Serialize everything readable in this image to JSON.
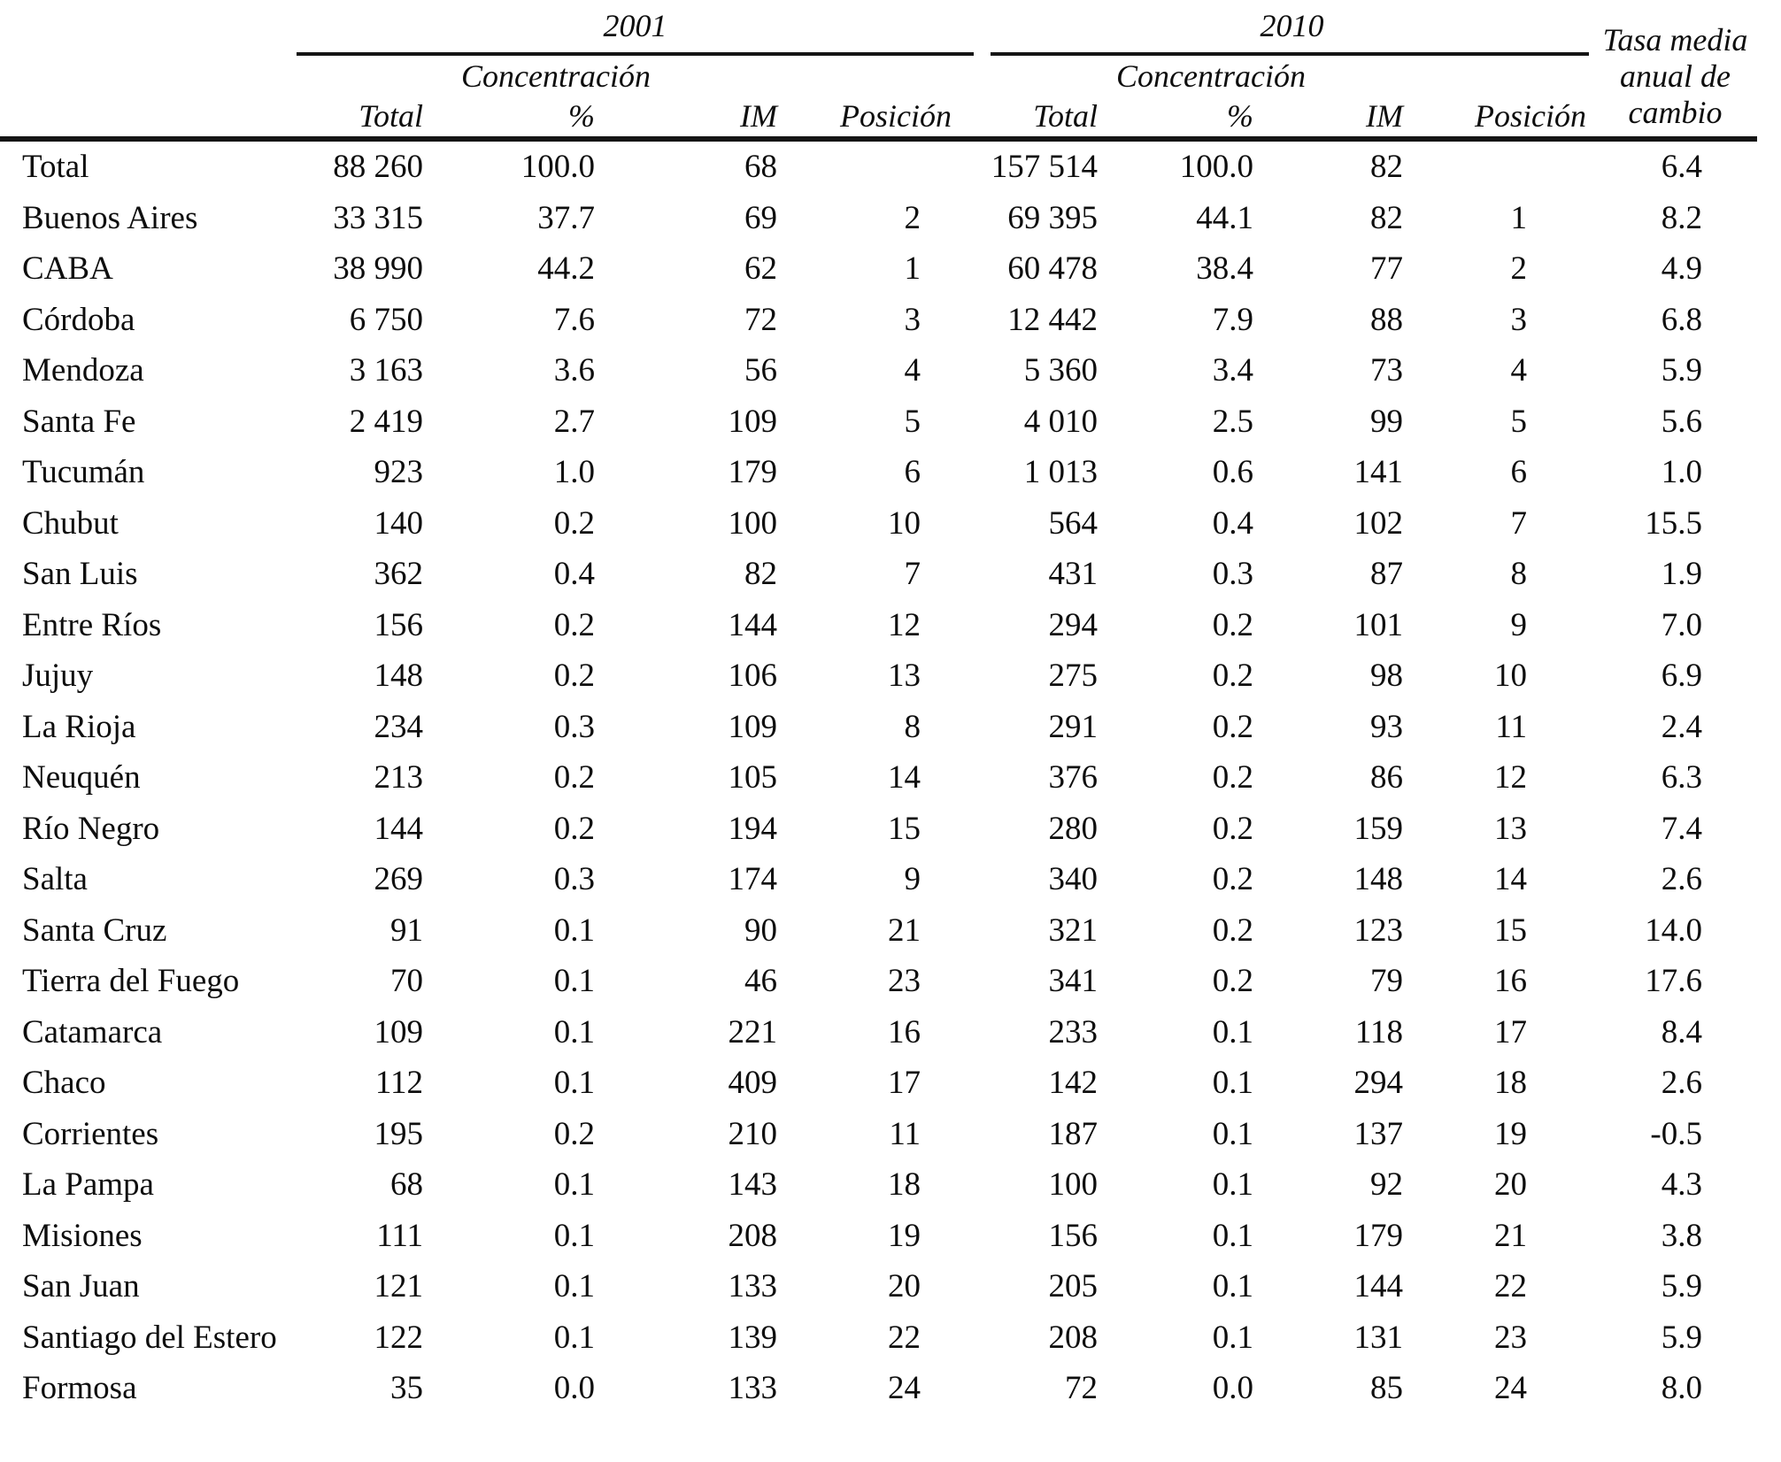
{
  "table": {
    "year_groups": {
      "g2001": "2001",
      "g2010": "2010"
    },
    "concentracion_label": "Concentración",
    "sub_headers": {
      "total": "Total",
      "pct": "%",
      "im": "IM",
      "pos": "Posición"
    },
    "tasa_lines": {
      "l1": "Tasa media",
      "l2": "anual de",
      "l3": "cambio"
    },
    "rule_color": "#151515",
    "columns_order": [
      "name",
      "total_2001",
      "pct_2001",
      "im_2001",
      "pos_2001",
      "total_2010",
      "pct_2010",
      "im_2010",
      "pos_2010",
      "tasa"
    ],
    "rows": [
      [
        "Total",
        "88 260",
        "100.0",
        "68",
        "",
        "157 514",
        "100.0",
        "82",
        "",
        "6.4"
      ],
      [
        "Buenos Aires",
        "33 315",
        "37.7",
        "69",
        "2",
        "69 395",
        "44.1",
        "82",
        "1",
        "8.2"
      ],
      [
        "CABA",
        "38 990",
        "44.2",
        "62",
        "1",
        "60 478",
        "38.4",
        "77",
        "2",
        "4.9"
      ],
      [
        "Córdoba",
        "6 750",
        "7.6",
        "72",
        "3",
        "12 442",
        "7.9",
        "88",
        "3",
        "6.8"
      ],
      [
        "Mendoza",
        "3 163",
        "3.6",
        "56",
        "4",
        "5 360",
        "3.4",
        "73",
        "4",
        "5.9"
      ],
      [
        "Santa Fe",
        "2 419",
        "2.7",
        "109",
        "5",
        "4 010",
        "2.5",
        "99",
        "5",
        "5.6"
      ],
      [
        "Tucumán",
        "923",
        "1.0",
        "179",
        "6",
        "1 013",
        "0.6",
        "141",
        "6",
        "1.0"
      ],
      [
        "Chubut",
        "140",
        "0.2",
        "100",
        "10",
        "564",
        "0.4",
        "102",
        "7",
        "15.5"
      ],
      [
        "San Luis",
        "362",
        "0.4",
        "82",
        "7",
        "431",
        "0.3",
        "87",
        "8",
        "1.9"
      ],
      [
        "Entre Ríos",
        "156",
        "0.2",
        "144",
        "12",
        "294",
        "0.2",
        "101",
        "9",
        "7.0"
      ],
      [
        "Jujuy",
        "148",
        "0.2",
        "106",
        "13",
        "275",
        "0.2",
        "98",
        "10",
        "6.9"
      ],
      [
        "La Rioja",
        "234",
        "0.3",
        "109",
        "8",
        "291",
        "0.2",
        "93",
        "11",
        "2.4"
      ],
      [
        "Neuquén",
        "213",
        "0.2",
        "105",
        "14",
        "376",
        "0.2",
        "86",
        "12",
        "6.3"
      ],
      [
        "Río Negro",
        "144",
        "0.2",
        "194",
        "15",
        "280",
        "0.2",
        "159",
        "13",
        "7.4"
      ],
      [
        "Salta",
        "269",
        "0.3",
        "174",
        "9",
        "340",
        "0.2",
        "148",
        "14",
        "2.6"
      ],
      [
        "Santa Cruz",
        "91",
        "0.1",
        "90",
        "21",
        "321",
        "0.2",
        "123",
        "15",
        "14.0"
      ],
      [
        "Tierra del Fuego",
        "70",
        "0.1",
        "46",
        "23",
        "341",
        "0.2",
        "79",
        "16",
        "17.6"
      ],
      [
        "Catamarca",
        "109",
        "0.1",
        "221",
        "16",
        "233",
        "0.1",
        "118",
        "17",
        "8.4"
      ],
      [
        "Chaco",
        "112",
        "0.1",
        "409",
        "17",
        "142",
        "0.1",
        "294",
        "18",
        "2.6"
      ],
      [
        "Corrientes",
        "195",
        "0.2",
        "210",
        "11",
        "187",
        "0.1",
        "137",
        "19",
        "-0.5"
      ],
      [
        "La Pampa",
        "68",
        "0.1",
        "143",
        "18",
        "100",
        "0.1",
        "92",
        "20",
        "4.3"
      ],
      [
        "Misiones",
        "111",
        "0.1",
        "208",
        "19",
        "156",
        "0.1",
        "179",
        "21",
        "3.8"
      ],
      [
        "San Juan",
        "121",
        "0.1",
        "133",
        "20",
        "205",
        "0.1",
        "144",
        "22",
        "5.9"
      ],
      [
        "Santiago del Estero",
        "122",
        "0.1",
        "139",
        "22",
        "208",
        "0.1",
        "131",
        "23",
        "5.9"
      ],
      [
        "Formosa",
        "35",
        "0.0",
        "133",
        "24",
        "72",
        "0.0",
        "85",
        "24",
        "8.0"
      ]
    ]
  }
}
